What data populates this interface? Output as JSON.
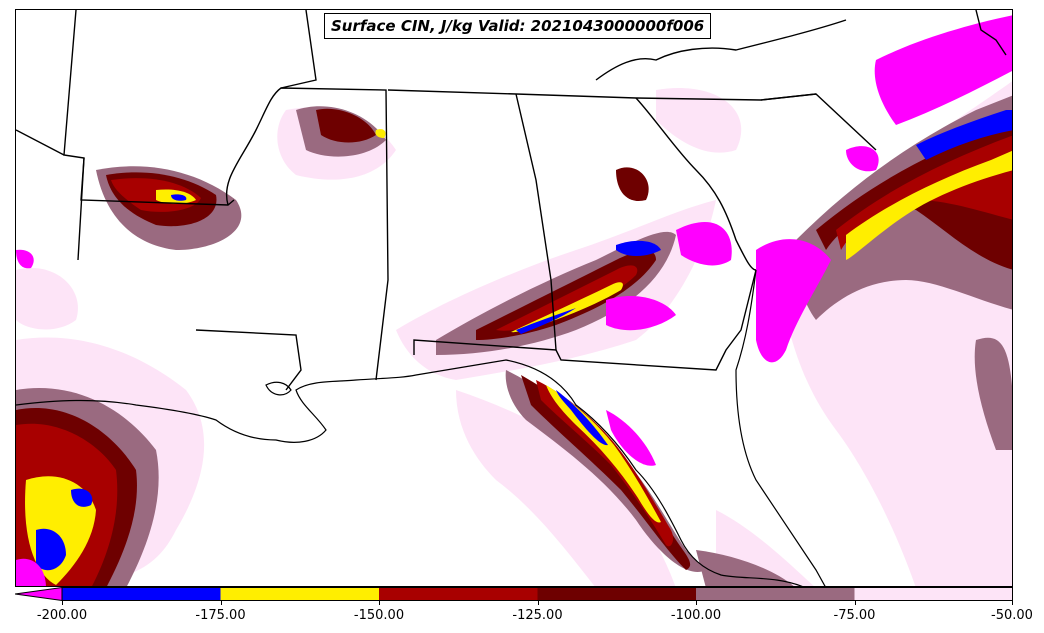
{
  "title": "Surface CIN, J/kg Valid: 2021043000000f006",
  "colorbar": {
    "ticks": [
      "-200.00",
      "-175.00",
      "-150.00",
      "-125.00",
      "-100.00",
      "-75.00",
      "-50.00"
    ],
    "bins": [
      {
        "from": -200,
        "to": -175,
        "color": "#0000ff"
      },
      {
        "from": -175,
        "to": -150,
        "color": "#ffee00"
      },
      {
        "from": -150,
        "to": -125,
        "color": "#a80000"
      },
      {
        "from": -125,
        "to": -100,
        "color": "#6e0000"
      },
      {
        "from": -100,
        "to": -75,
        "color": "#9a6a80"
      },
      {
        "from": -75,
        "to": -50,
        "color": "#fde4f7"
      }
    ],
    "under_color": "#ff00ff"
  }
}
